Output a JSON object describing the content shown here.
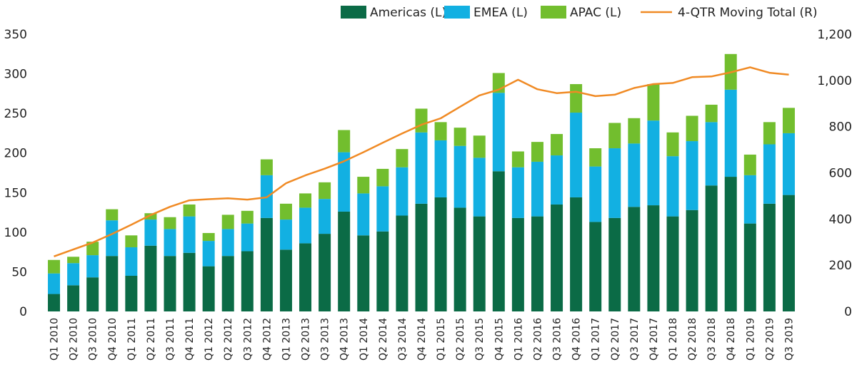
{
  "chart_data": {
    "type": "bar",
    "stacked": true,
    "categories": [
      "Q1 2010",
      "Q2 2010",
      "Q3 2010",
      "Q4 2010",
      "Q1 2011",
      "Q2 2011",
      "Q3 2011",
      "Q4 2011",
      "Q1 2012",
      "Q2 2012",
      "Q3 2012",
      "Q4 2012",
      "Q1 2013",
      "Q2 2013",
      "Q3 2013",
      "Q4 2013",
      "Q1 2014",
      "Q2 2014",
      "Q3 2014",
      "Q4 2014",
      "Q1 2015",
      "Q2 2015",
      "Q3 2015",
      "Q4 2015",
      "Q1 2016",
      "Q2 2016",
      "Q3 2016",
      "Q4 2016",
      "Q1 2017",
      "Q2 2017",
      "Q3 2017",
      "Q4 2017",
      "Q1 2018",
      "Q2 2018",
      "Q3 2018",
      "Q4 2018",
      "Q1 2019",
      "Q2 2019",
      "Q3 2019"
    ],
    "series": [
      {
        "name": "Americas (L)",
        "color": "#0b6b46",
        "axis": "left",
        "values": [
          22,
          33,
          43,
          70,
          45,
          83,
          70,
          74,
          57,
          70,
          76,
          118,
          78,
          86,
          98,
          126,
          96,
          101,
          121,
          136,
          144,
          131,
          120,
          177,
          118,
          120,
          135,
          144,
          113,
          118,
          132,
          134,
          120,
          128,
          159,
          170,
          111,
          136,
          147
        ]
      },
      {
        "name": "EMEA (L)",
        "color": "#12b0e2",
        "axis": "left",
        "values": [
          26,
          28,
          28,
          45,
          36,
          33,
          34,
          46,
          32,
          34,
          35,
          54,
          38,
          45,
          44,
          75,
          53,
          57,
          61,
          90,
          72,
          78,
          74,
          99,
          64,
          69,
          62,
          107,
          70,
          88,
          80,
          107,
          76,
          87,
          80,
          110,
          61,
          75,
          78
        ]
      },
      {
        "name": "APAC (L)",
        "color": "#72be2e",
        "axis": "left",
        "values": [
          17,
          8,
          17,
          14,
          15,
          8,
          15,
          15,
          10,
          18,
          16,
          20,
          20,
          18,
          21,
          28,
          21,
          22,
          23,
          30,
          23,
          23,
          28,
          25,
          20,
          25,
          27,
          36,
          23,
          32,
          32,
          46,
          30,
          32,
          22,
          45,
          26,
          28,
          32
        ]
      },
      {
        "name": "4-QTR Moving Total (R)",
        "type": "line",
        "color": "#f08a24",
        "axis": "right",
        "values": [
          238,
          268,
          298,
          335,
          375,
          417,
          453,
          481,
          486,
          490,
          484,
          494,
          555,
          589,
          618,
          650,
          689,
          730,
          770,
          808,
          836,
          886,
          935,
          960,
          1003,
          962,
          945,
          951,
          932,
          938,
          967,
          984,
          989,
          1014,
          1017,
          1035,
          1057,
          1033,
          1025
        ]
      }
    ],
    "y_left": {
      "min": 0,
      "max": 350,
      "ticks": [
        "0",
        "50",
        "100",
        "150",
        "200",
        "250",
        "300",
        "350"
      ]
    },
    "y_right": {
      "min": 0,
      "max": 1200,
      "ticks": [
        "0",
        "200",
        "400",
        "600",
        "800",
        "1,000",
        "1,200"
      ]
    },
    "legend_position": "top-right",
    "grid": false
  }
}
